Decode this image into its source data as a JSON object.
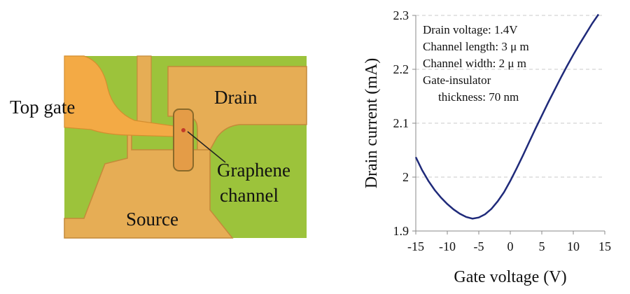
{
  "micrograph": {
    "labels": {
      "top_gate": "Top gate",
      "drain": "Drain",
      "source": "Source",
      "graphene_line1": "Graphene",
      "graphene_line2": "channel"
    },
    "colors": {
      "substrate": "#9cc33b",
      "electrode": "#e6ad55",
      "top_gate": "#f3aa45",
      "channel": "#e49c47"
    }
  },
  "chart_data": {
    "type": "line",
    "xlabel": "Gate voltage (V)",
    "ylabel": "Drain current (mA)",
    "xlim": [
      -15,
      15
    ],
    "ylim": [
      1.9,
      2.3
    ],
    "xticks": [
      -15,
      -10,
      -5,
      0,
      5,
      10,
      15
    ],
    "yticks": [
      1.9,
      2.0,
      2.1,
      2.2,
      2.3
    ],
    "ytick_labels": [
      "1.9",
      "2",
      "2.1",
      "2.2",
      "2.3"
    ],
    "grid": "horizontal dashed",
    "line_color": "#1f2a7a",
    "annotations": [
      "Drain voltage: 1.4V",
      "Channel length: 3 μ m",
      "Channel width: 2  μ m",
      "Gate-insulator",
      "thickness: 70 nm"
    ],
    "series": [
      {
        "x": [
          -15,
          -14,
          -13,
          -12,
          -11,
          -10,
          -9,
          -8,
          -7,
          -6,
          -5,
          -4,
          -3,
          -2,
          -1,
          0,
          1,
          2,
          3,
          4,
          5,
          6,
          7,
          8,
          9,
          10,
          11,
          12,
          13,
          14
        ],
        "y": [
          2.037,
          2.013,
          1.993,
          1.976,
          1.962,
          1.95,
          1.94,
          1.932,
          1.926,
          1.923,
          1.925,
          1.931,
          1.941,
          1.955,
          1.972,
          1.993,
          2.016,
          2.04,
          2.065,
          2.09,
          2.114,
          2.138,
          2.161,
          2.184,
          2.206,
          2.227,
          2.247,
          2.266,
          2.285,
          2.302
        ]
      }
    ]
  }
}
